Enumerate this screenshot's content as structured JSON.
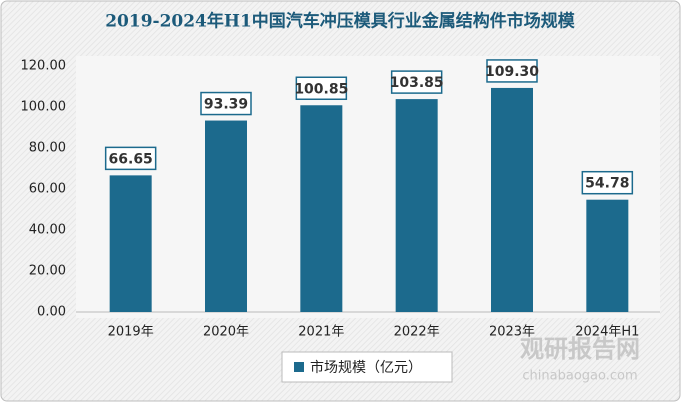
{
  "chart_data": {
    "type": "bar",
    "title": "2019-2024年H1中国汽车冲压模具行业金属结构件市场规模",
    "categories": [
      "2019年",
      "2020年",
      "2021年",
      "2022年",
      "2023年",
      "2024年H1"
    ],
    "series": [
      {
        "name": "市场规模（亿元）",
        "color": "#1c6a8d",
        "values": [
          66.65,
          93.39,
          100.85,
          103.85,
          109.3,
          54.78
        ],
        "value_labels": [
          "66.65",
          "93.39",
          "100.85",
          "103.85",
          "109.30",
          "54.78"
        ]
      }
    ],
    "ylim": [
      0,
      120
    ],
    "yticks": [
      {
        "value": 0,
        "label": "0.00"
      },
      {
        "value": 20,
        "label": "20.00"
      },
      {
        "value": 40,
        "label": "40.00"
      },
      {
        "value": 60,
        "label": "60.00"
      },
      {
        "value": 80,
        "label": "80.00"
      },
      {
        "value": 100,
        "label": "100.00"
      },
      {
        "value": 120,
        "label": "120.00"
      }
    ],
    "grid": false,
    "legend": "bottom",
    "watermark": [
      "观研报告网",
      "chinabaogao.com"
    ]
  }
}
